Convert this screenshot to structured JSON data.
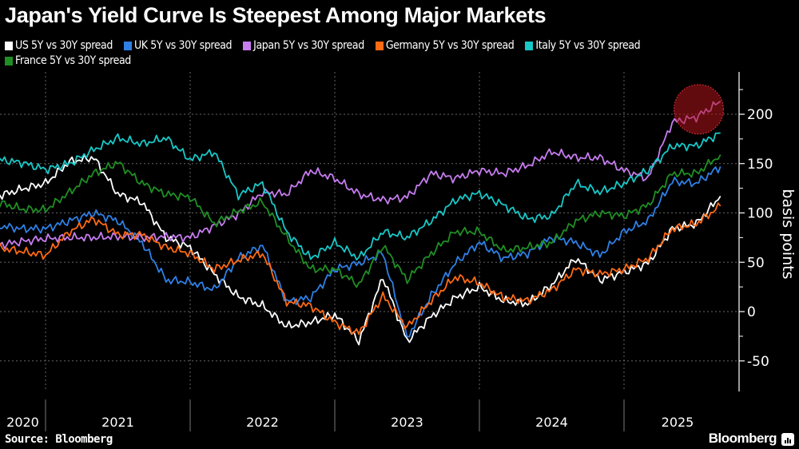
{
  "title": "Japan's Yield Curve Is Steepest Among Major Markets",
  "source": "Source: Bloomberg",
  "brand": "Bloomberg",
  "chart_data": {
    "type": "line",
    "title": "Japan's Yield Curve Is Steepest Among Major Markets",
    "ylabel": "basis points",
    "xlabel": "",
    "ylim": [
      -80,
      245
    ],
    "xlim": [
      "2020-09",
      "2025-10"
    ],
    "grid": true,
    "legend_placement": "top-left",
    "y_axis_side": "right",
    "yticks": [
      "-50",
      "0",
      "50",
      "100",
      "150",
      "200"
    ],
    "xticks": [
      "2020",
      "2021",
      "2022",
      "2023",
      "2024",
      "2025"
    ],
    "annotation": {
      "type": "circle",
      "target": "Japan 5Y vs 30Y spread",
      "around": [
        "2025-05",
        "2025-09"
      ],
      "color": "#b3141b"
    },
    "x": [
      "2020-09",
      "2020-11",
      "2021-01",
      "2021-03",
      "2021-05",
      "2021-07",
      "2021-09",
      "2021-11",
      "2022-01",
      "2022-03",
      "2022-05",
      "2022-07",
      "2022-09",
      "2022-11",
      "2023-01",
      "2023-03",
      "2023-05",
      "2023-07",
      "2023-09",
      "2023-11",
      "2024-01",
      "2024-03",
      "2024-05",
      "2024-07",
      "2024-09",
      "2024-11",
      "2025-01",
      "2025-03",
      "2025-05",
      "2025-07",
      "2025-09"
    ],
    "series": [
      {
        "name": "US 5Y vs 30Y spread",
        "color": "#ffffff",
        "values": [
          117,
          124,
          130,
          152,
          156,
          119,
          111,
          75,
          65,
          38,
          15,
          6,
          -15,
          -11,
          -3,
          -30,
          35,
          -30,
          -5,
          14,
          25,
          11,
          8,
          27,
          54,
          32,
          40,
          49,
          84,
          89,
          117
        ]
      },
      {
        "name": "UK 5Y vs 30Y spread",
        "color": "#2e80e6",
        "values": [
          87,
          84,
          84,
          92,
          100,
          92,
          70,
          32,
          30,
          22,
          54,
          67,
          10,
          14,
          43,
          49,
          59,
          -27,
          16,
          49,
          70,
          54,
          59,
          75,
          70,
          57,
          81,
          92,
          132,
          130,
          147
        ]
      },
      {
        "name": "Japan 5Y vs 30Y spread",
        "color": "#c77cf0",
        "values": [
          67,
          71,
          74,
          75,
          75,
          76,
          75,
          76,
          75,
          87,
          99,
          121,
          119,
          143,
          135,
          119,
          113,
          116,
          140,
          135,
          143,
          140,
          148,
          162,
          156,
          156,
          143,
          135,
          192,
          197,
          213
        ]
      },
      {
        "name": "Germany 5Y vs 30Y spread",
        "color": "#ff6a14",
        "values": [
          65,
          61,
          57,
          81,
          94,
          78,
          78,
          65,
          59,
          43,
          52,
          59,
          10,
          6,
          -11,
          -22,
          16,
          -16,
          11,
          35,
          29,
          14,
          11,
          22,
          43,
          38,
          43,
          54,
          84,
          89,
          107
        ]
      },
      {
        "name": "Italy 5Y vs 30Y spread",
        "color": "#18c8c8",
        "values": [
          154,
          151,
          144,
          150,
          164,
          176,
          170,
          176,
          154,
          162,
          118,
          130,
          81,
          54,
          70,
          54,
          81,
          75,
          92,
          113,
          120,
          108,
          94,
          97,
          130,
          121,
          130,
          143,
          168,
          168,
          181
        ]
      },
      {
        "name": "France 5Y vs 30Y spread",
        "color": "#1f8f24",
        "values": [
          111,
          104,
          103,
          121,
          140,
          151,
          130,
          119,
          116,
          89,
          102,
          111,
          75,
          43,
          43,
          27,
          67,
          32,
          59,
          81,
          81,
          62,
          65,
          70,
          92,
          100,
          97,
          108,
          140,
          140,
          159
        ]
      }
    ]
  }
}
